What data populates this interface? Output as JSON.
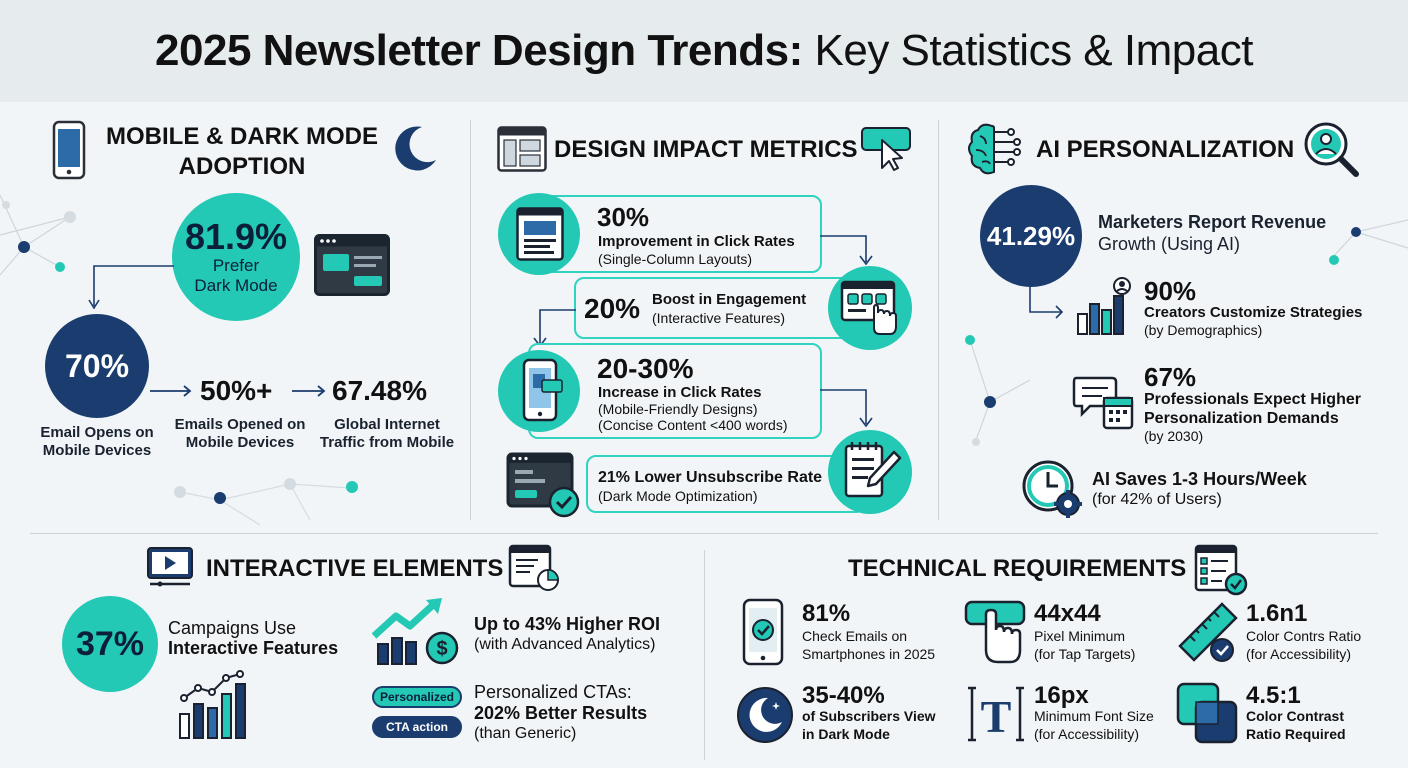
{
  "header": {
    "title_bold": "2025 Newsletter Design Trends:",
    "title_light": "Key Statistics & Impact"
  },
  "mobile": {
    "title_line1": "MOBILE & DARK MODE",
    "title_line2": "ADOPTION",
    "dark_pct": "81.9%",
    "dark_line1": "Prefer",
    "dark_line2": "Dark Mode",
    "opens_pct": "70%",
    "opens_line1": "Email Opens on",
    "opens_line2": "Mobile Devices",
    "emails_pct": "50%+",
    "emails_line1": "Emails Opened on",
    "emails_line2": "Mobile Devices",
    "traffic_pct": "67.48%",
    "traffic_line1": "Global Internet",
    "traffic_line2": "Traffic from Mobile"
  },
  "design": {
    "title": "DESIGN IMPACT METRICS",
    "m1_pct": "30%",
    "m1_line1": "Improvement in Click Rates",
    "m1_line2": "(Single-Column Layouts)",
    "m2_pct": "20%",
    "m2_line1": "Boost in Engagement",
    "m2_line2": "(Interactive Features)",
    "m3_pct": "20-30%",
    "m3_line1": "Increase in Click Rates",
    "m3_line2": "(Mobile-Friendly Designs)",
    "m3_line3": "(Concise Content <400 words)",
    "m4_line1": "21% Lower Unsubscribe Rate",
    "m4_line2": "(Dark Mode Optimization)"
  },
  "ai": {
    "title": "AI PERSONALIZATION",
    "rev_pct": "41.29%",
    "rev_line1": "Marketers Report Revenue",
    "rev_line2": "Growth (Using AI)",
    "cust_pct": "90%",
    "cust_line1": "Creators Customize Strategies",
    "cust_line2": "(by Demographics)",
    "pro_pct": "67%",
    "pro_line1": "Professionals Expect Higher",
    "pro_line2": "Personalization Demands",
    "pro_line3": "(by 2030)",
    "save_line1": "AI Saves 1-3 Hours/Week",
    "save_line2": "(for 42% of Users)"
  },
  "interactive": {
    "title": "INTERACTIVE ELEMENTS",
    "camp_pct": "37%",
    "camp_line1": "Campaigns Use",
    "camp_line2": "Interactive Features",
    "roi_line1": "Up to 43% Higher ROI",
    "roi_line2": "(with Advanced Analytics)",
    "pill1": "Personalized",
    "pill2": "CTA action",
    "cta_line1": "Personalized CTAs:",
    "cta_line2": "202% Better Results",
    "cta_line3": "(than Generic)",
    "dollar": "$"
  },
  "tech": {
    "title": "TECHNICAL REQUIREMENTS",
    "t1_val": "81%",
    "t1_line1": "Check Emails on",
    "t1_line2": "Smartphones in 2025",
    "t2_val": "44x44",
    "t2_line1": "Pixel Minimum",
    "t2_line2": "(for Tap Targets)",
    "t3_val": "1.6n1",
    "t3_line1": "Color Contrs Ratio",
    "t3_line2": "(for Accessibility)",
    "t4_val": "35-40%",
    "t4_line1": "of Subscribers View",
    "t4_line2": "in Dark Mode",
    "t5_val": "16px",
    "t5_line1": "Minimum Font Size",
    "t5_line2": "(for Accessibility)",
    "t5_icon_letter": "T",
    "t6_val": "4.5:1",
    "t6_line1": "Color Contrast",
    "t6_line2": "Ratio Required"
  },
  "colors": {
    "teal": "#23c9b4",
    "navy": "#1b3c6e",
    "background": "#f2f5f7"
  }
}
